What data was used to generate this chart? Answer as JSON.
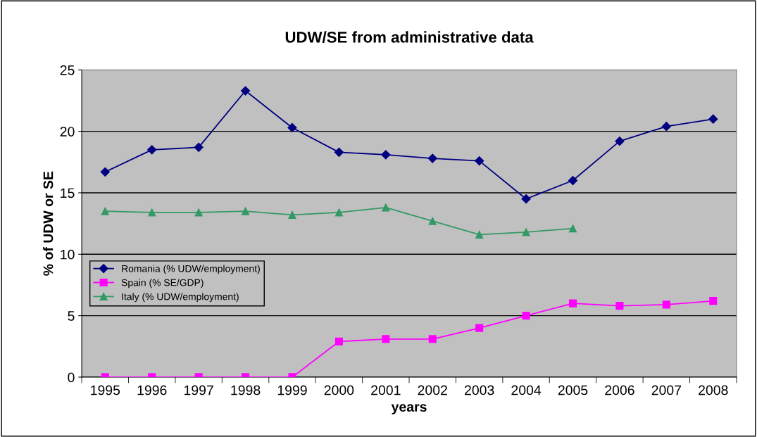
{
  "chart_data": {
    "type": "line",
    "title": "UDW/SE from administrative data",
    "xlabel": "years",
    "ylabel": "% of UDW or SE",
    "categories": [
      "1995",
      "1996",
      "1997",
      "1998",
      "1999",
      "2000",
      "2001",
      "2002",
      "2003",
      "2004",
      "2005",
      "2006",
      "2007",
      "2008"
    ],
    "series": [
      {
        "name": "Romania (% UDW/employment)",
        "color": "#000080",
        "marker": "diamond",
        "values": [
          16.7,
          18.5,
          18.7,
          23.3,
          20.3,
          18.3,
          18.1,
          17.8,
          17.6,
          14.5,
          16.0,
          19.2,
          20.4,
          21.0
        ]
      },
      {
        "name": "Spain (% SE/GDP)",
        "color": "#ff00ff",
        "marker": "square",
        "values": [
          0,
          0,
          0,
          0,
          0,
          2.9,
          3.1,
          3.1,
          4.0,
          5.0,
          6.0,
          5.8,
          5.9,
          6.2
        ]
      },
      {
        "name": "Italy (% UDW/employment)",
        "color": "#339966",
        "marker": "triangle",
        "values": [
          13.5,
          13.4,
          13.4,
          13.5,
          13.2,
          13.4,
          13.8,
          12.7,
          11.6,
          11.8,
          12.1,
          null,
          null,
          null
        ]
      }
    ],
    "ylim": [
      0,
      25
    ],
    "yticks": [
      0,
      5,
      10,
      15,
      20,
      25
    ],
    "grid": "y",
    "legend": "center left"
  }
}
